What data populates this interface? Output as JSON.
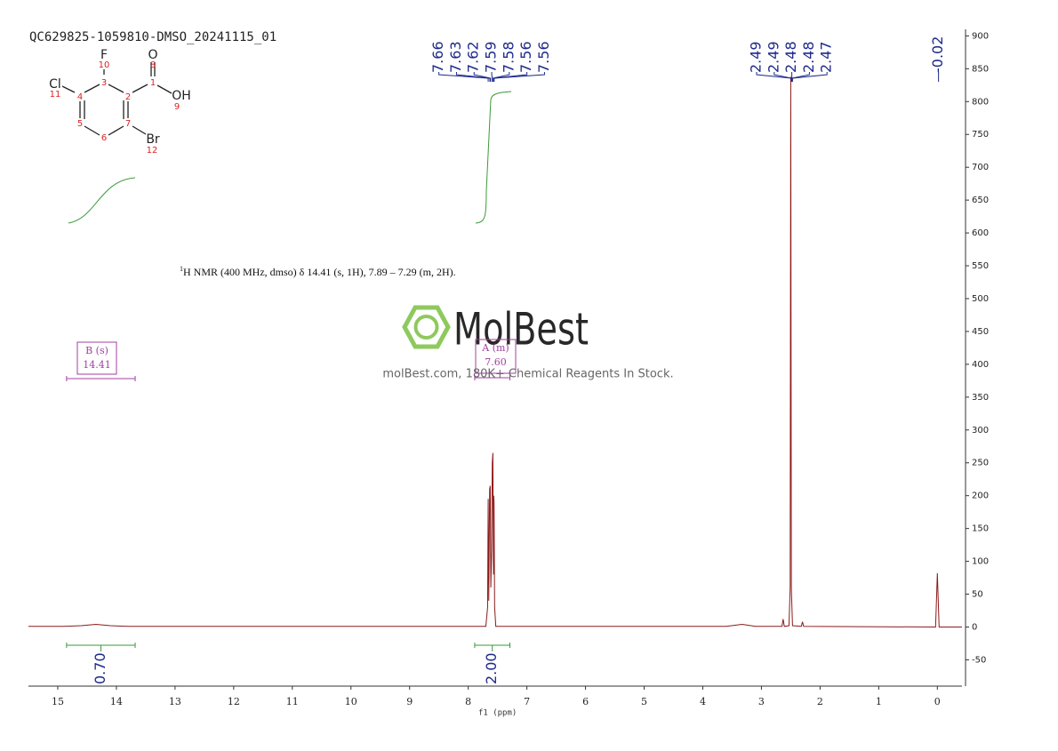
{
  "title": "QC629825-1059810-DMSO_20241115_01",
  "structure": {
    "atoms": [
      "F",
      "O",
      "Cl",
      "OH",
      "Br"
    ],
    "atom_numbers": [
      "10",
      "8",
      "11",
      "9",
      "12"
    ],
    "ring_numbers": [
      "4",
      "3",
      "2",
      "1",
      "5",
      "6",
      "7"
    ]
  },
  "watermark": {
    "brand": "MolBest",
    "tagline": "molBest.com, 180K+ Chemical Reagents In Stock."
  },
  "chart_data": {
    "type": "line",
    "x_label": "f1 (ppm)",
    "annotation": {
      "sup": "1",
      "text": "H NMR (400 MHz, dmso) δ 14.41 (s, 1H), 7.89 – 7.29 (m, 2H)."
    },
    "xlim": [
      15.5,
      -0.42
    ],
    "xticks": [
      15,
      14,
      13,
      12,
      11,
      10,
      9,
      8,
      7,
      6,
      5,
      4,
      3,
      2,
      1,
      0
    ],
    "ylim": [
      -90,
      910
    ],
    "yticks": [
      -50,
      0,
      50,
      100,
      150,
      200,
      250,
      300,
      350,
      400,
      450,
      500,
      550,
      600,
      650,
      700,
      750,
      800,
      850,
      900
    ],
    "color": "#8b1a1a",
    "x": [
      15.5,
      14.9,
      14.6,
      14.35,
      14.1,
      13.8,
      8.0,
      7.7,
      7.67,
      7.66,
      7.65,
      7.635,
      7.625,
      7.615,
      7.6,
      7.59,
      7.58,
      7.57,
      7.565,
      7.56,
      7.55,
      7.53,
      3.6,
      3.33,
      3.1,
      2.65,
      2.63,
      2.61,
      2.53,
      2.51,
      2.5,
      2.49,
      2.47,
      2.32,
      2.3,
      2.28,
      0.03,
      0.0,
      -0.03,
      -0.42
    ],
    "values": [
      1,
      1,
      2,
      4,
      2,
      1,
      1,
      1,
      30,
      195,
      40,
      210,
      215,
      60,
      120,
      250,
      265,
      80,
      200,
      190,
      30,
      1,
      1,
      4,
      1,
      1,
      12,
      1,
      2,
      60,
      838,
      60,
      2,
      1,
      8,
      1,
      0,
      82,
      0,
      0
    ],
    "peak_label_color": "#1f2a8c",
    "peak_label_groups": [
      [
        7.66,
        7.63,
        7.62,
        7.59,
        7.58,
        7.56,
        7.56
      ],
      [
        2.49,
        2.49,
        2.48,
        2.48,
        2.47
      ],
      [
        -0.02
      ]
    ],
    "integral_color": "#3a9a3a",
    "integrals": [
      {
        "from": 14.85,
        "to": 13.68,
        "value": 0.7,
        "label": "0.70"
      },
      {
        "from": 7.89,
        "to": 7.29,
        "value": 2,
        "label": "2.00"
      }
    ],
    "multiplet_color": "#a040a0",
    "multiplets": [
      {
        "name": "B (s)",
        "shift": {
          "value": 14.41,
          "label": "14.41"
        },
        "from": 14.85,
        "to": 13.68
      },
      {
        "name": "A (m)",
        "shift": {
          "value": 7.6,
          "label": "7.60"
        },
        "from": 7.89,
        "to": 7.29
      }
    ]
  }
}
